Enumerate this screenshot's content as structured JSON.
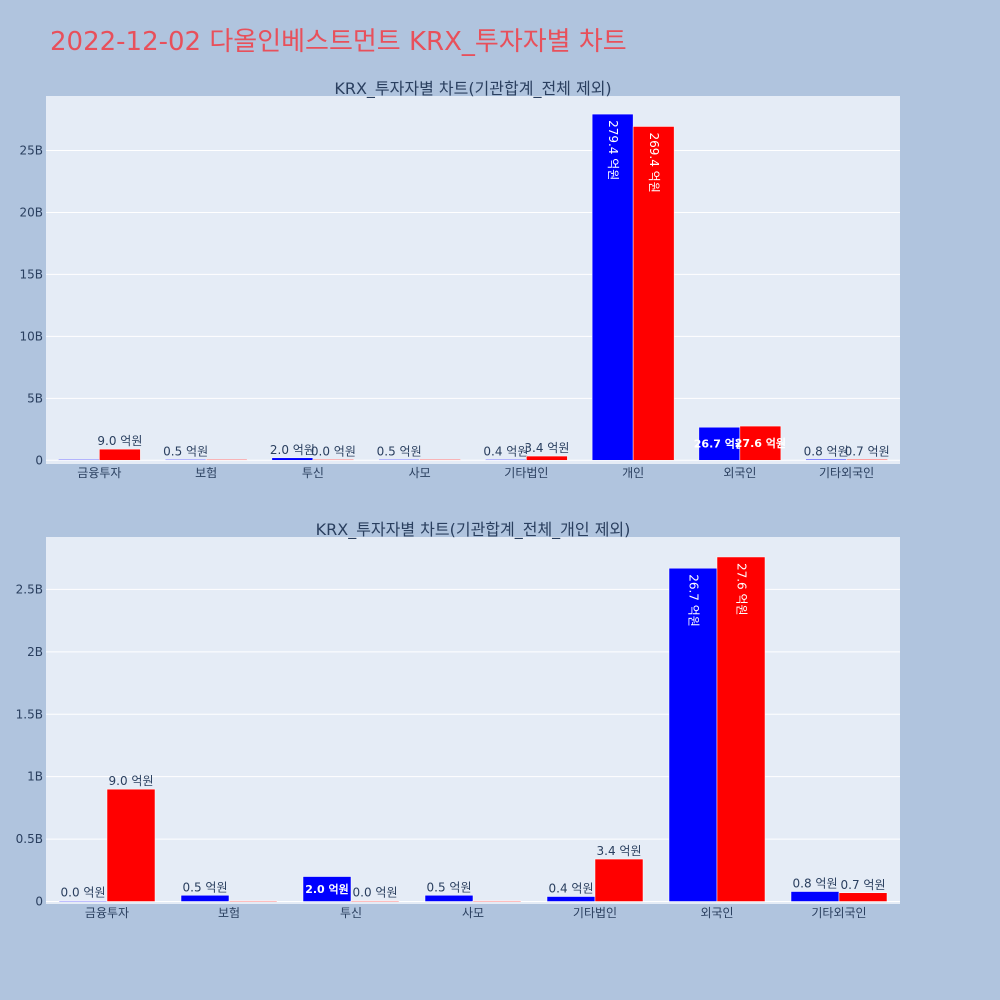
{
  "title": "2022-12-02 다올인베스트먼트 KRX_투자자별 차트",
  "colors": {
    "background": "#b0c4de",
    "plot_bg": "#e5ecf6",
    "title": "#e8505b",
    "series_blue": "#0000ff",
    "series_red": "#ff0000"
  },
  "chart_data": [
    {
      "type": "bar",
      "title": "KRX_투자자별 차트(기관합계_전체 제외)",
      "categories": [
        "금융투자",
        "보험",
        "투신",
        "사모",
        "기타법인",
        "개인",
        "외국인",
        "기타외국인"
      ],
      "series": [
        {
          "color": "#0000ff",
          "values": [
            0,
            50000000,
            200000000,
            50000000,
            40000000,
            27940000000,
            2670000000,
            80000000
          ],
          "labels": [
            "",
            "0.5 억원",
            "2.0 억원",
            "0.5 억원",
            "0.4 억원",
            "279.4 억원",
            "26.7 억원",
            "0.8 억원"
          ]
        },
        {
          "color": "#ff0000",
          "values": [
            900000000,
            0,
            0,
            0,
            340000000,
            26940000000,
            2760000000,
            70000000
          ],
          "labels": [
            "9.0 억원",
            "",
            "0.0 억원",
            "",
            "3.4 억원",
            "269.4 억원",
            "27.6 억원",
            "0.7 억원"
          ]
        }
      ],
      "yticks": [
        0,
        5000000000,
        10000000000,
        15000000000,
        20000000000,
        25000000000
      ],
      "ytick_labels": [
        "0",
        "5B",
        "10B",
        "15B",
        "20B",
        "25B"
      ],
      "ylim": [
        -300000000,
        29400000000
      ]
    },
    {
      "type": "bar",
      "title": "KRX_투자자별 차트(기관합계_전체_개인 제외)",
      "categories": [
        "금융투자",
        "보험",
        "투신",
        "사모",
        "기타법인",
        "외국인",
        "기타외국인"
      ],
      "series": [
        {
          "color": "#0000ff",
          "values": [
            0,
            50000000,
            200000000,
            50000000,
            40000000,
            2670000000,
            80000000
          ],
          "labels": [
            "0.0 억원",
            "0.5 억원",
            "2.0 억원",
            "0.5 억원",
            "0.4 억원",
            "26.7 억원",
            "0.8 억원"
          ]
        },
        {
          "color": "#ff0000",
          "values": [
            900000000,
            0,
            0,
            0,
            340000000,
            2760000000,
            70000000
          ],
          "labels": [
            "9.0 억원",
            "",
            "0.0 억원",
            "",
            "3.4 억원",
            "27.6 억원",
            "0.7 억원"
          ]
        }
      ],
      "yticks": [
        0,
        500000000,
        1000000000,
        1500000000,
        2000000000,
        2500000000
      ],
      "ytick_labels": [
        "0",
        "0.5B",
        "1B",
        "1.5B",
        "2B",
        "2.5B"
      ],
      "ylim": [
        -20000000,
        2920000000
      ]
    }
  ]
}
